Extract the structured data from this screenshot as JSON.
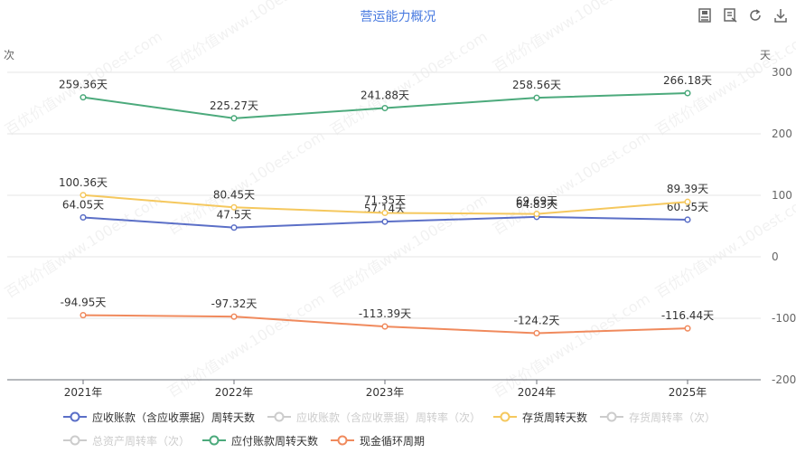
{
  "toolbox": {
    "icons": [
      "data-view-icon",
      "magic-type-icon",
      "restore-icon",
      "download-icon"
    ]
  },
  "chart_data": {
    "type": "line",
    "title": "营运能力概况",
    "ylabel_left": "次",
    "ylabel_right": "天",
    "categories": [
      "2021年",
      "2022年",
      "2023年",
      "2024年",
      "2025年"
    ],
    "yaxis_right": {
      "ylim": [
        -200,
        300
      ],
      "ticks": [
        "300",
        "200",
        "100",
        "0",
        "-100",
        "-200"
      ]
    },
    "series": [
      {
        "name": "应收账款（含应收票据）周转天数",
        "color": "#5b6fc7",
        "active": true,
        "values": [
          64.05,
          47.5,
          57.14,
          64.83,
          60.35
        ],
        "labels": [
          "64.05天",
          "47.5天",
          "57.14天",
          "64.83天",
          "60.35天"
        ]
      },
      {
        "name": "应收账款（含应收票据）周转率（次）",
        "color": "#cccccc",
        "active": false
      },
      {
        "name": "存货周转天数",
        "color": "#f5c85e",
        "active": true,
        "values": [
          100.36,
          80.45,
          71.35,
          69.69,
          89.39
        ],
        "labels": [
          "100.36天",
          "80.45天",
          "71.35天",
          "69.69天",
          "89.39天"
        ]
      },
      {
        "name": "存货周转率（次）",
        "color": "#cccccc",
        "active": false
      },
      {
        "name": "总资产周转率（次）",
        "color": "#cccccc",
        "active": false
      },
      {
        "name": "应付账款周转天数",
        "color": "#4caa7c",
        "active": true,
        "values": [
          259.36,
          225.27,
          241.88,
          258.56,
          266.18
        ],
        "labels": [
          "259.36天",
          "225.27天",
          "241.88天",
          "258.56天",
          "266.18天"
        ]
      },
      {
        "name": "现金循环周期",
        "color": "#f08a5d",
        "active": true,
        "values": [
          -94.95,
          -97.32,
          -113.39,
          -124.2,
          -116.44
        ],
        "labels": [
          "-94.95天",
          "-97.32天",
          "-113.39天",
          "-124.2天",
          "-116.44天"
        ]
      }
    ],
    "legend_position": "bottom",
    "grid": true
  },
  "watermark": "百优价值www.100est.com"
}
